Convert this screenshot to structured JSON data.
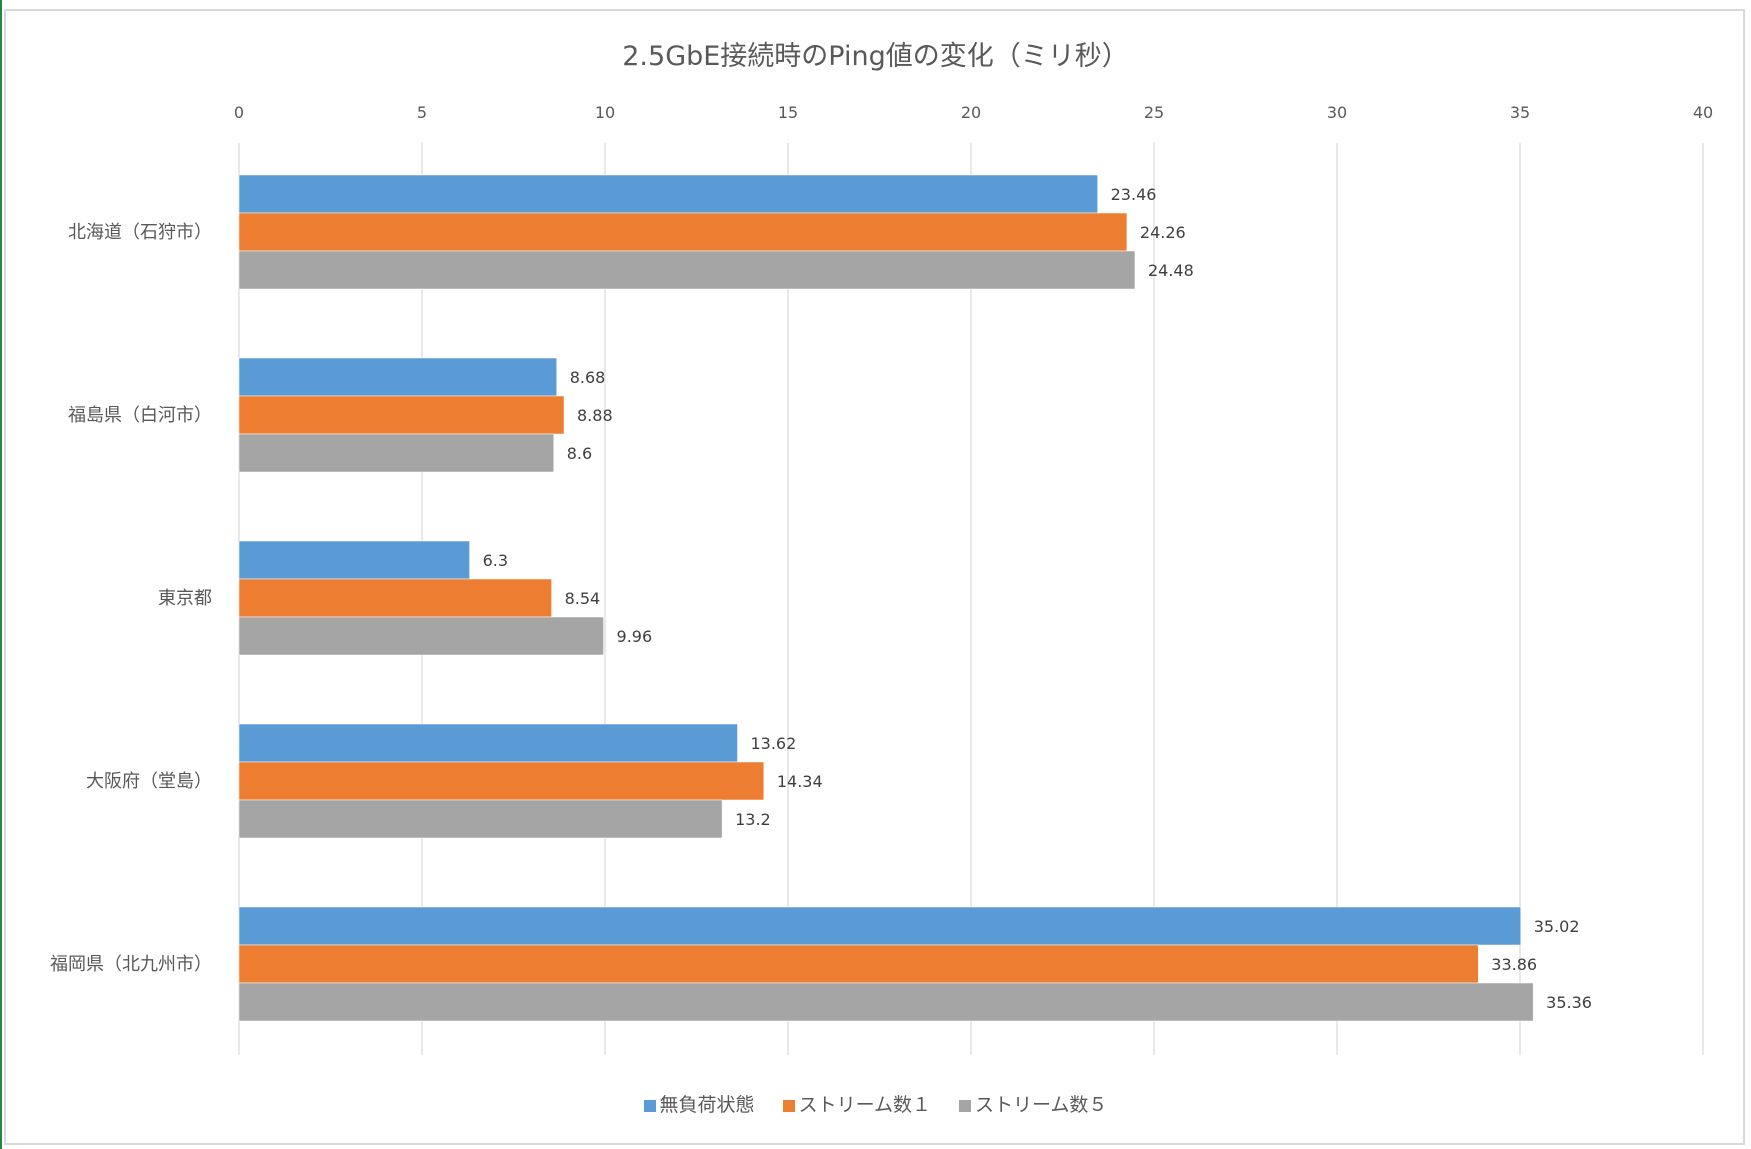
{
  "chart_data": {
    "type": "bar",
    "orientation": "horizontal",
    "title": "2.5GbE接続時のPing値の変化（ミリ秒）",
    "categories": [
      "北海道（石狩市）",
      "福島県（白河市）",
      "東京都",
      "大阪府（堂島）",
      "福岡県（北九州市）"
    ],
    "series": [
      {
        "name": "無負荷状態",
        "color": "#5b9bd5",
        "values": [
          23.46,
          8.68,
          6.3,
          13.62,
          35.02
        ]
      },
      {
        "name": "ストリーム数１",
        "color": "#ed7d31",
        "values": [
          24.26,
          8.88,
          8.54,
          14.34,
          33.86
        ]
      },
      {
        "name": "ストリーム数５",
        "color": "#a5a5a5",
        "values": [
          24.48,
          8.6,
          9.96,
          13.2,
          35.36
        ]
      }
    ],
    "xlim": [
      0,
      40
    ],
    "ticks": [
      0,
      5,
      10,
      15,
      20,
      25,
      30,
      35,
      40
    ],
    "tick_labels": [
      "0",
      "5",
      "10",
      "15",
      "20",
      "25",
      "30",
      "35",
      "40"
    ],
    "xlabel": "",
    "ylabel": "",
    "grid": true,
    "legend_position": "bottom"
  }
}
